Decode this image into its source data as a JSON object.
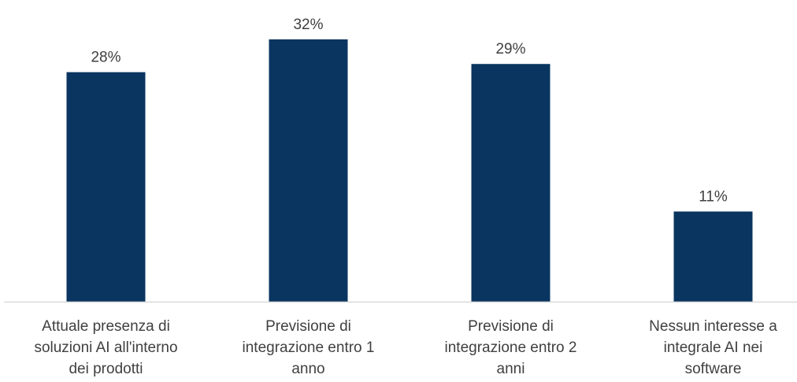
{
  "chart_data": {
    "type": "bar",
    "categories": [
      [
        "Attuale presenza di",
        "soluzioni AI all'interno",
        "dei prodotti"
      ],
      [
        "Previsione di",
        "integrazione entro 1",
        "anno"
      ],
      [
        "Previsione di",
        "integrazione entro 2",
        "anni"
      ],
      [
        "Nessun interesse a",
        "integrale AI nei",
        "software"
      ]
    ],
    "values": [
      28,
      32,
      29,
      11
    ],
    "value_labels": [
      "28%",
      "32%",
      "29%",
      "11%"
    ],
    "unit": "%",
    "ylim": [
      0,
      32
    ],
    "grid": false,
    "legend": "none",
    "colors": {
      "bar": "#0a3560",
      "axis": "#d9d9d9",
      "text": "#404040"
    }
  }
}
